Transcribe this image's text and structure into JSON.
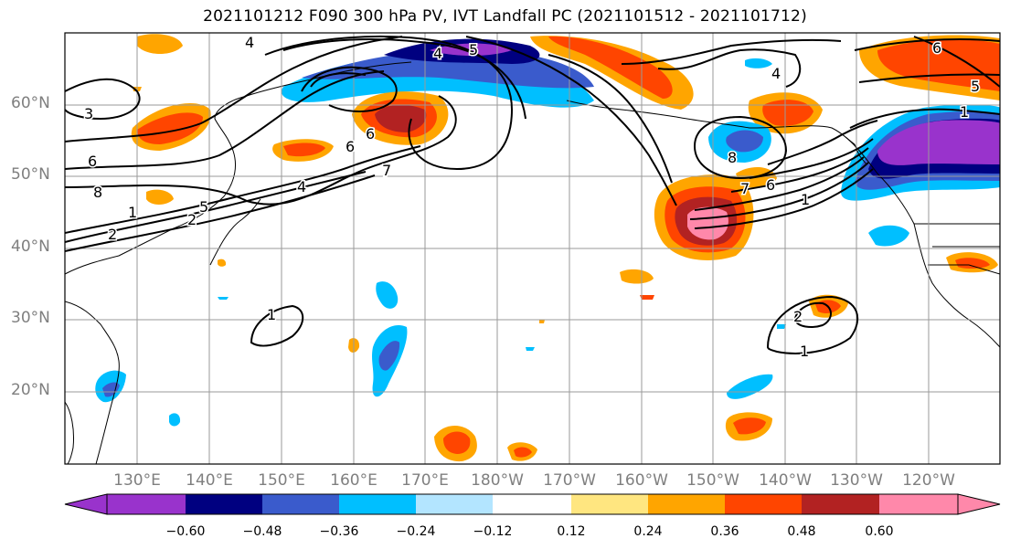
{
  "title": "2021101212 F090 300 hPa PV, IVT Landfall PC (2021101512 - 2021101712)",
  "map": {
    "lat_labels": [
      "60°N",
      "50°N",
      "40°N",
      "30°N",
      "20°N"
    ],
    "lon_labels": [
      "130°E",
      "140°E",
      "150°E",
      "160°E",
      "170°E",
      "180°W",
      "170°W",
      "160°W",
      "150°W",
      "140°W",
      "130°W",
      "120°W"
    ],
    "contour_labels": [
      "4",
      "3",
      "6",
      "8",
      "1",
      "2",
      "2",
      "5",
      "4",
      "5",
      "6",
      "7",
      "4",
      "6",
      "7",
      "8",
      "1",
      "4",
      "6",
      "6",
      "5",
      "1",
      "1",
      "2",
      "1"
    ]
  },
  "colorbar": {
    "ticks": [
      "−0.60",
      "−0.48",
      "−0.36",
      "−0.24",
      "−0.12",
      "0.12",
      "0.24",
      "0.36",
      "0.48",
      "0.60"
    ],
    "colors": [
      "#9933cc",
      "#000080",
      "#3a5bcc",
      "#00bfff",
      "#b3e5ff",
      "#ffffff",
      "#ffe680",
      "#ffa500",
      "#ff4500",
      "#b22222",
      "#ff88aa"
    ]
  }
}
